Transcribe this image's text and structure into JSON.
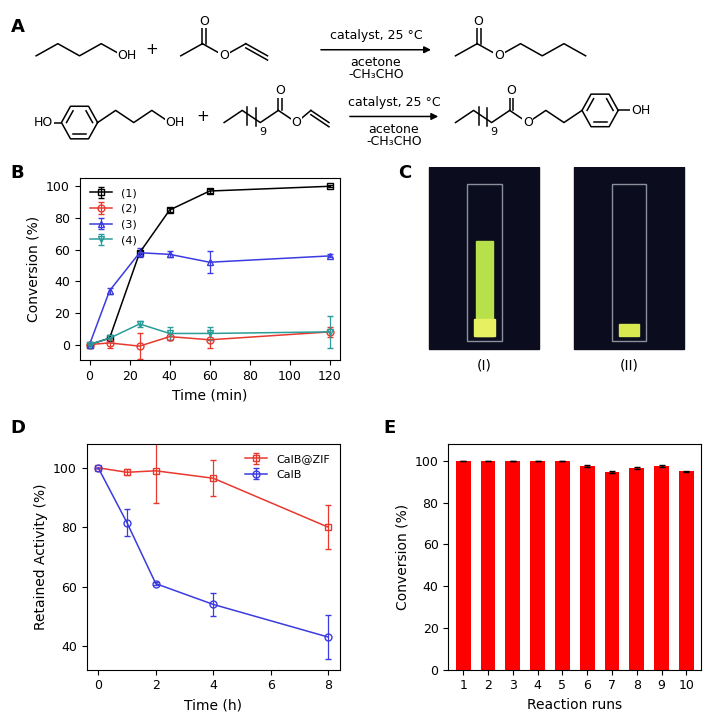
{
  "scheme": {
    "panel_label": "A",
    "plus": "+",
    "reactions": [
      {
        "conditions_above": "catalyst, 25 °C",
        "conditions_below": [
          "acetone",
          "-CH₃CHO"
        ],
        "hydroxyl": "OH",
        "oxygen": "O"
      },
      {
        "conditions_above": "catalyst, 25 °C",
        "conditions_below": [
          "acetone",
          "-CH₃CHO"
        ],
        "hydroxyl": "OH",
        "oxygen": "O",
        "phenol": "HO",
        "repeat": "9"
      }
    ]
  },
  "photo": {
    "panel_label": "C",
    "captions": [
      "(I)",
      "(II)"
    ]
  },
  "chart_data": [
    {
      "type": "line",
      "panel_label": "B",
      "x_label": "Time (min)",
      "y_label": "Conversion (%)",
      "x": [
        0,
        10,
        25,
        40,
        60,
        120
      ],
      "xlim": [
        -5,
        125
      ],
      "xticks": [
        0,
        20,
        40,
        60,
        80,
        100,
        120
      ],
      "ylim": [
        -10,
        105
      ],
      "yticks": [
        0,
        20,
        40,
        60,
        80,
        100
      ],
      "legend": "upper left",
      "series": [
        {
          "name": "(1)",
          "color": "#000000",
          "marker": "square",
          "line_style": "solid",
          "values": [
            0,
            4,
            58,
            85,
            97,
            100
          ],
          "errors": [
            0,
            1,
            1,
            1,
            1,
            0.5
          ]
        },
        {
          "name": "(2)",
          "color": "#e8392f",
          "marker": "circle",
          "line_style": "solid",
          "values": [
            0,
            1,
            -1,
            5,
            3,
            8
          ],
          "errors": [
            0,
            3,
            8,
            2,
            5,
            3
          ]
        },
        {
          "name": "(3)",
          "color": "#3b3be0",
          "marker": "triangle_up",
          "line_style": "solid",
          "values": [
            0,
            34,
            58,
            57,
            52,
            56
          ],
          "errors": [
            0,
            2,
            3,
            2,
            7,
            1
          ]
        },
        {
          "name": "(4)",
          "color": "#2a9d9a",
          "marker": "triangle_down",
          "line_style": "solid",
          "values": [
            0,
            4,
            13,
            7,
            7,
            8
          ],
          "errors": [
            0,
            2,
            2,
            4,
            4,
            10
          ]
        }
      ]
    },
    {
      "type": "line",
      "panel_label": "D",
      "x_label": "Time (h)",
      "y_label": "Retained Activity (%)",
      "x": [
        0,
        1,
        2,
        4,
        8
      ],
      "xlim": [
        -0.4,
        8.4
      ],
      "xticks": [
        0,
        2,
        4,
        6,
        8
      ],
      "ylim": [
        32,
        108
      ],
      "yticks": [
        40,
        60,
        80,
        100
      ],
      "legend": "upper right",
      "series": [
        {
          "name": "CalB@ZIF",
          "color": "#e8392f",
          "marker": "square",
          "line_style": "solid",
          "values": [
            100,
            98.5,
            99,
            96.5,
            80
          ],
          "errors": [
            0,
            1,
            11,
            6,
            7.5
          ]
        },
        {
          "name": "CalB",
          "color": "#3b3be0",
          "marker": "circle",
          "line_style": "solid",
          "values": [
            100,
            81.5,
            61,
            54,
            43
          ],
          "errors": [
            0,
            4.5,
            0.5,
            4,
            7.5
          ]
        }
      ]
    },
    {
      "type": "bar",
      "panel_label": "E",
      "x_label": "Reaction runs",
      "y_label": "Conversion (%)",
      "categories": [
        "1",
        "2",
        "3",
        "4",
        "5",
        "6",
        "7",
        "8",
        "9",
        "10"
      ],
      "values": [
        100,
        100,
        100,
        100,
        100,
        97.5,
        94.5,
        96.5,
        97.5,
        95
      ],
      "errors": [
        0,
        0,
        0,
        0,
        0,
        0.3,
        0.5,
        0.3,
        0.3,
        0.3
      ],
      "color": "#ff0000",
      "ylim": [
        0,
        108
      ],
      "yticks": [
        0,
        20,
        40,
        60,
        80,
        100
      ]
    }
  ]
}
